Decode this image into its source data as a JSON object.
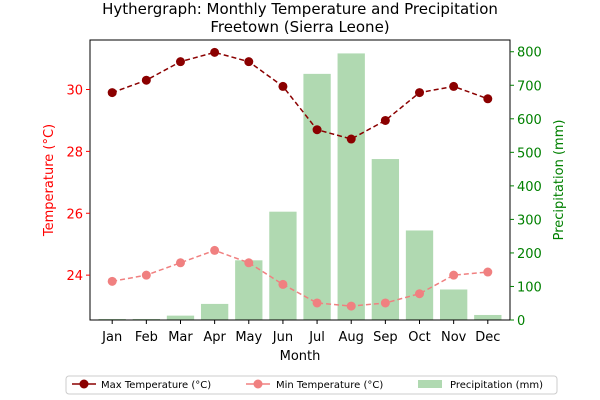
{
  "chart_data": {
    "type": "bar+line",
    "title": "Hythergraph: Monthly Temperature and Precipitation",
    "subtitle": "Freetown (Sierra Leone)",
    "xlabel": "Month",
    "ylabel_left": "Temperature (°C)",
    "ylabel_right": "Precipitation (mm)",
    "categories": [
      "Jan",
      "Feb",
      "Mar",
      "Apr",
      "May",
      "Jun",
      "Jul",
      "Aug",
      "Sep",
      "Oct",
      "Nov",
      "Dec"
    ],
    "ylim_left": [
      22.55,
      31.6
    ],
    "ylim_right": [
      0,
      835
    ],
    "yticks_left": [
      24,
      26,
      28,
      30
    ],
    "yticks_right": [
      0,
      100,
      200,
      300,
      400,
      500,
      600,
      700,
      800
    ],
    "series": [
      {
        "name": "Max Temperature (°C)",
        "axis": "left",
        "kind": "line",
        "values": [
          29.9,
          30.3,
          30.9,
          31.2,
          30.9,
          30.1,
          28.7,
          28.4,
          29.0,
          29.9,
          30.1,
          29.7
        ]
      },
      {
        "name": "Min Temperature (°C)",
        "axis": "left",
        "kind": "line",
        "values": [
          23.8,
          24.0,
          24.4,
          24.8,
          24.4,
          23.7,
          23.1,
          23.0,
          23.1,
          23.4,
          24.0,
          24.1
        ]
      },
      {
        "name": "Precipitation (mm)",
        "axis": "right",
        "kind": "bar",
        "values": [
          3,
          3,
          13,
          48,
          178,
          323,
          734,
          795,
          480,
          267,
          91,
          15
        ]
      }
    ],
    "colors": {
      "max": "#8b0000",
      "min": "#f08080",
      "bar": "#b0d9b1",
      "left_axis": "#ff0000",
      "right_axis": "#008000"
    },
    "legend_position": "bottom-center",
    "grid": false
  }
}
